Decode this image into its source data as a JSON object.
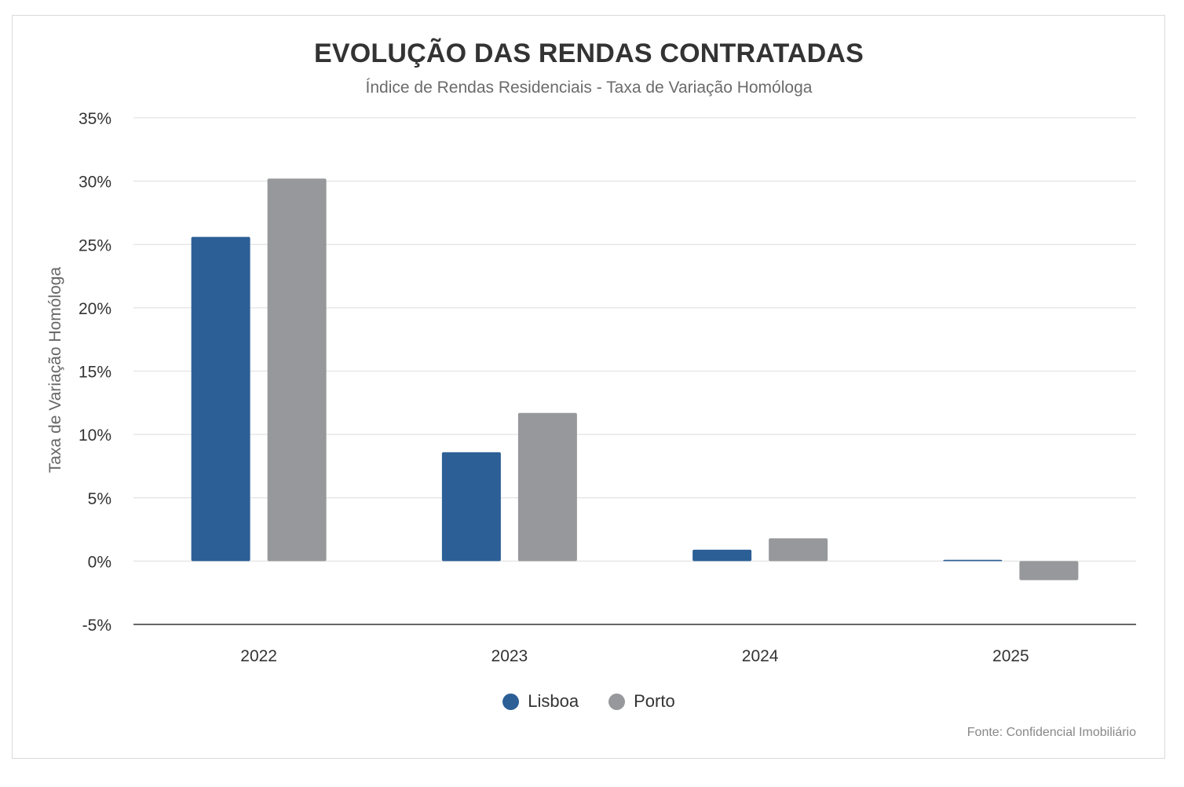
{
  "chart_data": {
    "type": "bar",
    "title": "EVOLUÇÃO DAS RENDAS CONTRATADAS",
    "subtitle": "Índice de Rendas Residenciais - Taxa de Variação Homóloga",
    "xlabel": "",
    "ylabel": "Taxa de Variação Homóloga",
    "categories": [
      "2022",
      "2023",
      "2024",
      "2025"
    ],
    "series": [
      {
        "name": "Lisboa",
        "color": "#2c5f96",
        "values": [
          25.6,
          8.6,
          0.9,
          0.1
        ]
      },
      {
        "name": "Porto",
        "color": "#97989b",
        "values": [
          30.2,
          11.7,
          1.8,
          -1.5
        ]
      }
    ],
    "ylim": [
      -5,
      35
    ],
    "yticks": [
      -5,
      0,
      5,
      10,
      15,
      20,
      25,
      30,
      35
    ],
    "ytick_labels": [
      "-5%",
      "0%",
      "5%",
      "10%",
      "15%",
      "20%",
      "25%",
      "30%",
      "35%"
    ],
    "grid": true,
    "legend": "bottom-center",
    "source": "Fonte: Confidencial Imobiliário"
  }
}
